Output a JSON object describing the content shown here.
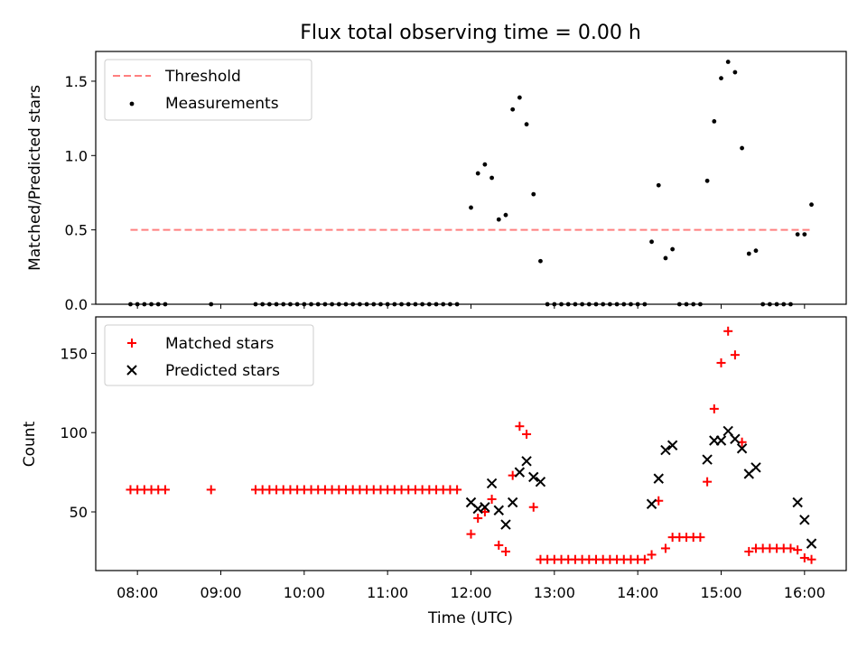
{
  "chart_data": [
    {
      "type": "scatter",
      "title": "Flux total observing time = 0.00 h",
      "ylabel": "Matched/Predicted stars",
      "xlabel": "",
      "x_unit": "time (UTC)",
      "xlim": [
        "07:30",
        "16:30"
      ],
      "ylim": [
        0,
        1.7
      ],
      "yticks": [
        0.0,
        0.5,
        1.0,
        1.5
      ],
      "ytick_labels": [
        "0.0",
        "0.5",
        "1.0",
        "1.5"
      ],
      "legend_position": "top-left",
      "grid": false,
      "threshold": {
        "name": "Threshold",
        "value": 0.5,
        "x_start": "07:55",
        "x_end": "16:05",
        "color": "#ff7f7f",
        "style": "dashed"
      },
      "series": [
        {
          "name": "Measurements",
          "color": "#000000",
          "marker": "dot",
          "points": [
            [
              "07:55",
              0
            ],
            [
              "08:00",
              0
            ],
            [
              "08:05",
              0
            ],
            [
              "08:10",
              0
            ],
            [
              "08:15",
              0
            ],
            [
              "08:20",
              0
            ],
            [
              "08:53",
              0
            ],
            [
              "09:25",
              0
            ],
            [
              "09:30",
              0
            ],
            [
              "09:35",
              0
            ],
            [
              "09:40",
              0
            ],
            [
              "09:45",
              0
            ],
            [
              "09:50",
              0
            ],
            [
              "09:55",
              0
            ],
            [
              "10:00",
              0
            ],
            [
              "10:05",
              0
            ],
            [
              "10:10",
              0
            ],
            [
              "10:15",
              0
            ],
            [
              "10:20",
              0
            ],
            [
              "10:25",
              0
            ],
            [
              "10:30",
              0
            ],
            [
              "10:35",
              0
            ],
            [
              "10:40",
              0
            ],
            [
              "10:45",
              0
            ],
            [
              "10:50",
              0
            ],
            [
              "10:55",
              0
            ],
            [
              "11:00",
              0
            ],
            [
              "11:05",
              0
            ],
            [
              "11:10",
              0
            ],
            [
              "11:15",
              0
            ],
            [
              "11:20",
              0
            ],
            [
              "11:25",
              0
            ],
            [
              "11:30",
              0
            ],
            [
              "11:35",
              0
            ],
            [
              "11:40",
              0
            ],
            [
              "11:45",
              0
            ],
            [
              "11:50",
              0
            ],
            [
              "12:00",
              0.65
            ],
            [
              "12:05",
              0.88
            ],
            [
              "12:10",
              0.94
            ],
            [
              "12:15",
              0.85
            ],
            [
              "12:20",
              0.57
            ],
            [
              "12:25",
              0.6
            ],
            [
              "12:30",
              1.31
            ],
            [
              "12:35",
              1.39
            ],
            [
              "12:40",
              1.21
            ],
            [
              "12:45",
              0.74
            ],
            [
              "12:50",
              0.29
            ],
            [
              "12:55",
              0
            ],
            [
              "13:00",
              0
            ],
            [
              "13:05",
              0
            ],
            [
              "13:10",
              0
            ],
            [
              "13:15",
              0
            ],
            [
              "13:20",
              0
            ],
            [
              "13:25",
              0
            ],
            [
              "13:30",
              0
            ],
            [
              "13:35",
              0
            ],
            [
              "13:40",
              0
            ],
            [
              "13:45",
              0
            ],
            [
              "13:50",
              0
            ],
            [
              "13:55",
              0
            ],
            [
              "14:00",
              0
            ],
            [
              "14:05",
              0
            ],
            [
              "14:10",
              0.42
            ],
            [
              "14:15",
              0.8
            ],
            [
              "14:20",
              0.31
            ],
            [
              "14:25",
              0.37
            ],
            [
              "14:30",
              0
            ],
            [
              "14:35",
              0
            ],
            [
              "14:40",
              0
            ],
            [
              "14:45",
              0
            ],
            [
              "14:50",
              0.83
            ],
            [
              "14:55",
              1.23
            ],
            [
              "15:00",
              1.52
            ],
            [
              "15:05",
              1.63
            ],
            [
              "15:10",
              1.56
            ],
            [
              "15:15",
              1.05
            ],
            [
              "15:20",
              0.34
            ],
            [
              "15:25",
              0.36
            ],
            [
              "15:30",
              0
            ],
            [
              "15:35",
              0
            ],
            [
              "15:40",
              0
            ],
            [
              "15:45",
              0
            ],
            [
              "15:50",
              0
            ],
            [
              "15:55",
              0.47
            ],
            [
              "16:00",
              0.47
            ],
            [
              "16:05",
              0.67
            ]
          ]
        }
      ]
    },
    {
      "type": "scatter",
      "title": "",
      "ylabel": "Count",
      "xlabel": "Time (UTC)",
      "x_unit": "time (UTC)",
      "xlim": [
        "07:30",
        "16:30"
      ],
      "ylim": [
        13,
        173
      ],
      "yticks": [
        50,
        100,
        150
      ],
      "ytick_labels": [
        "50",
        "100",
        "150"
      ],
      "xticks": [
        "08:00",
        "09:00",
        "10:00",
        "11:00",
        "12:00",
        "13:00",
        "14:00",
        "15:00",
        "16:00"
      ],
      "xtick_labels": [
        "08:00",
        "09:00",
        "10:00",
        "11:00",
        "12:00",
        "13:00",
        "14:00",
        "15:00",
        "16:00"
      ],
      "legend_position": "top-left",
      "grid": false,
      "series": [
        {
          "name": "Matched stars",
          "color": "#ff0000",
          "marker": "plus",
          "points": [
            [
              "07:55",
              64
            ],
            [
              "08:00",
              64
            ],
            [
              "08:05",
              64
            ],
            [
              "08:10",
              64
            ],
            [
              "08:15",
              64
            ],
            [
              "08:20",
              64
            ],
            [
              "08:53",
              64
            ],
            [
              "09:25",
              64
            ],
            [
              "09:30",
              64
            ],
            [
              "09:35",
              64
            ],
            [
              "09:40",
              64
            ],
            [
              "09:45",
              64
            ],
            [
              "09:50",
              64
            ],
            [
              "09:55",
              64
            ],
            [
              "10:00",
              64
            ],
            [
              "10:05",
              64
            ],
            [
              "10:10",
              64
            ],
            [
              "10:15",
              64
            ],
            [
              "10:20",
              64
            ],
            [
              "10:25",
              64
            ],
            [
              "10:30",
              64
            ],
            [
              "10:35",
              64
            ],
            [
              "10:40",
              64
            ],
            [
              "10:45",
              64
            ],
            [
              "10:50",
              64
            ],
            [
              "10:55",
              64
            ],
            [
              "11:00",
              64
            ],
            [
              "11:05",
              64
            ],
            [
              "11:10",
              64
            ],
            [
              "11:15",
              64
            ],
            [
              "11:20",
              64
            ],
            [
              "11:25",
              64
            ],
            [
              "11:30",
              64
            ],
            [
              "11:35",
              64
            ],
            [
              "11:40",
              64
            ],
            [
              "11:45",
              64
            ],
            [
              "11:50",
              64
            ],
            [
              "12:00",
              36
            ],
            [
              "12:05",
              46
            ],
            [
              "12:10",
              50
            ],
            [
              "12:15",
              58
            ],
            [
              "12:20",
              29
            ],
            [
              "12:25",
              25
            ],
            [
              "12:30",
              73
            ],
            [
              "12:35",
              104
            ],
            [
              "12:40",
              99
            ],
            [
              "12:45",
              53
            ],
            [
              "12:50",
              20
            ],
            [
              "12:55",
              20
            ],
            [
              "13:00",
              20
            ],
            [
              "13:05",
              20
            ],
            [
              "13:10",
              20
            ],
            [
              "13:15",
              20
            ],
            [
              "13:20",
              20
            ],
            [
              "13:25",
              20
            ],
            [
              "13:30",
              20
            ],
            [
              "13:35",
              20
            ],
            [
              "13:40",
              20
            ],
            [
              "13:45",
              20
            ],
            [
              "13:50",
              20
            ],
            [
              "13:55",
              20
            ],
            [
              "14:00",
              20
            ],
            [
              "14:05",
              20
            ],
            [
              "14:10",
              23
            ],
            [
              "14:15",
              57
            ],
            [
              "14:20",
              27
            ],
            [
              "14:25",
              34
            ],
            [
              "14:30",
              34
            ],
            [
              "14:35",
              34
            ],
            [
              "14:40",
              34
            ],
            [
              "14:45",
              34
            ],
            [
              "14:50",
              69
            ],
            [
              "14:55",
              115
            ],
            [
              "15:00",
              144
            ],
            [
              "15:05",
              164
            ],
            [
              "15:10",
              149
            ],
            [
              "15:15",
              94
            ],
            [
              "15:20",
              25
            ],
            [
              "15:25",
              27
            ],
            [
              "15:30",
              27
            ],
            [
              "15:35",
              27
            ],
            [
              "15:40",
              27
            ],
            [
              "15:45",
              27
            ],
            [
              "15:50",
              27
            ],
            [
              "15:55",
              26
            ],
            [
              "16:00",
              21
            ],
            [
              "16:05",
              20
            ]
          ]
        },
        {
          "name": "Predicted stars",
          "color": "#000000",
          "marker": "x",
          "points": [
            [
              "12:00",
              56
            ],
            [
              "12:05",
              52
            ],
            [
              "12:10",
              53
            ],
            [
              "12:15",
              68
            ],
            [
              "12:20",
              51
            ],
            [
              "12:25",
              42
            ],
            [
              "12:30",
              56
            ],
            [
              "12:35",
              75
            ],
            [
              "12:40",
              82
            ],
            [
              "12:45",
              72
            ],
            [
              "12:50",
              69
            ],
            [
              "14:10",
              55
            ],
            [
              "14:15",
              71
            ],
            [
              "14:20",
              89
            ],
            [
              "14:25",
              92
            ],
            [
              "14:50",
              83
            ],
            [
              "14:55",
              95
            ],
            [
              "15:00",
              95
            ],
            [
              "15:05",
              101
            ],
            [
              "15:10",
              96
            ],
            [
              "15:15",
              90
            ],
            [
              "15:20",
              74
            ],
            [
              "15:25",
              78
            ],
            [
              "15:55",
              56
            ],
            [
              "16:00",
              45
            ],
            [
              "16:05",
              30
            ]
          ]
        }
      ]
    }
  ]
}
